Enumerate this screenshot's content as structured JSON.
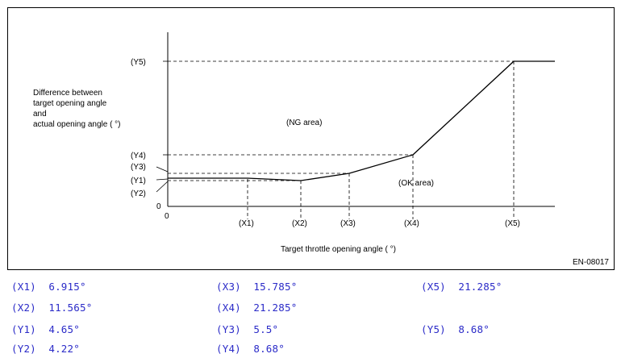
{
  "figure": {
    "code": "EN-08017",
    "x_axis_label": "Target throttle opening angle (  °)",
    "y_axis_label_lines": [
      "Difference between",
      "target opening angle",
      "and",
      "actual opening angle (  °)"
    ],
    "origin_label": "0",
    "ng_area_label": "(NG area)",
    "ok_area_label": "(OK area)",
    "x_ticks": [
      "(X1)",
      "(X2)",
      "(X3)",
      "(X4)",
      "(X5)"
    ],
    "y_ticks": [
      "(Y5)",
      "(Y4)",
      "(Y3)",
      "(Y1)",
      "(Y2)",
      "0"
    ]
  },
  "values": {
    "X1": {
      "label": "(X1)",
      "value": "6.915°"
    },
    "X2": {
      "label": "(X2)",
      "value": "11.565°"
    },
    "X3": {
      "label": "(X3)",
      "value": "15.785°"
    },
    "X4": {
      "label": "(X4)",
      "value": "21.285°"
    },
    "X5": {
      "label": "(X5)",
      "value": "21.285°"
    },
    "Y1": {
      "label": "(Y1)",
      "value": "4.65°"
    },
    "Y2": {
      "label": "(Y2)",
      "value": "4.22°"
    },
    "Y3": {
      "label": "(Y3)",
      "value": "5.5°"
    },
    "Y4": {
      "label": "(Y4)",
      "value": "8.68°"
    },
    "Y5": {
      "label": "(Y5)",
      "value": "8.68°"
    }
  },
  "colors": {
    "value_text": "#2b2bc8",
    "line": "#000000"
  }
}
